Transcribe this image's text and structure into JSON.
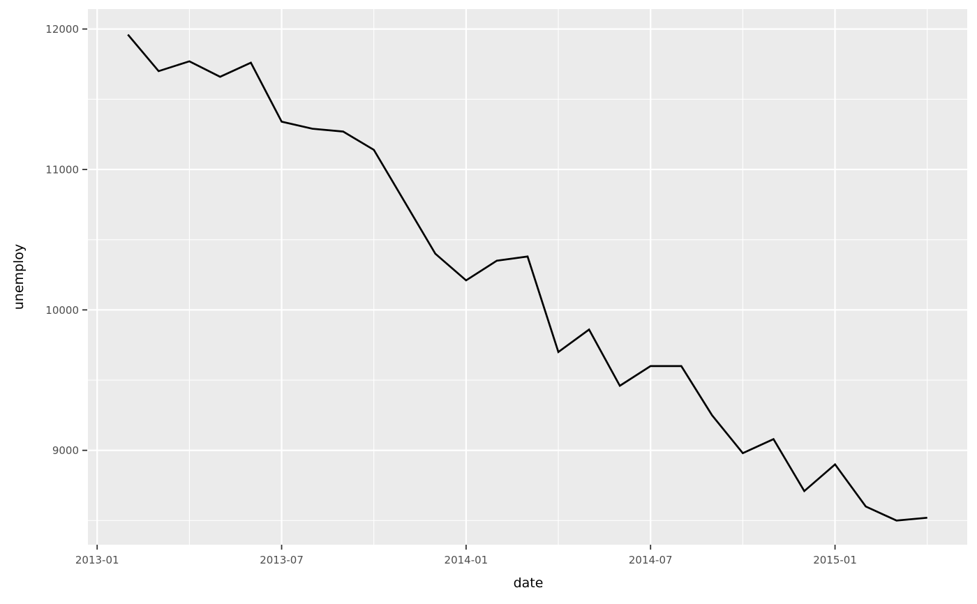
{
  "chart_data": {
    "type": "line",
    "title": "",
    "xlabel": "date",
    "ylabel": "unemploy",
    "x": [
      "2013-02",
      "2013-03",
      "2013-04",
      "2013-05",
      "2013-06",
      "2013-07",
      "2013-08",
      "2013-09",
      "2013-10",
      "2013-11",
      "2013-12",
      "2014-01",
      "2014-02",
      "2014-03",
      "2014-04",
      "2014-05",
      "2014-06",
      "2014-07",
      "2014-08",
      "2014-09",
      "2014-10",
      "2014-11",
      "2014-12",
      "2015-01",
      "2015-02",
      "2015-03",
      "2015-04"
    ],
    "series": [
      {
        "name": "unemploy",
        "values": [
          11960,
          11700,
          11770,
          11660,
          11760,
          11340,
          11290,
          11270,
          11140,
          10770,
          10400,
          10210,
          10350,
          10380,
          9700,
          9860,
          9460,
          9600,
          9600,
          9250,
          8980,
          9080,
          8710,
          8900,
          8600,
          8500,
          8520
        ]
      }
    ],
    "x_axis": {
      "major_ticks": [
        {
          "label": "2013-01",
          "date": "2013-01"
        },
        {
          "label": "2013-07",
          "date": "2013-07"
        },
        {
          "label": "2014-01",
          "date": "2014-01"
        },
        {
          "label": "2014-07",
          "date": "2014-07"
        },
        {
          "label": "2015-01",
          "date": "2015-01"
        }
      ],
      "minor_ticks": [
        "2013-04",
        "2013-10",
        "2014-04",
        "2014-10",
        "2015-04"
      ]
    },
    "y_axis": {
      "major_ticks": [
        {
          "label": "12000",
          "value": 12000
        },
        {
          "label": "11000",
          "value": 11000
        },
        {
          "label": "10000",
          "value": 10000
        },
        {
          "label": "9000",
          "value": 9000
        }
      ],
      "minor_ticks": [
        11500,
        10500,
        9500,
        8500
      ],
      "ylim": [
        8328,
        12142
      ]
    },
    "grid": true,
    "legend": "none",
    "styling": {
      "panel_background": "#EBEBEB",
      "grid_color": "#FFFFFF",
      "line_color": "#000000",
      "tick_mark_color": "#333333",
      "tick_label_color": "#4D4D4D",
      "axis_title_color": "#000000",
      "figure_background": "#FFFFFF"
    }
  }
}
